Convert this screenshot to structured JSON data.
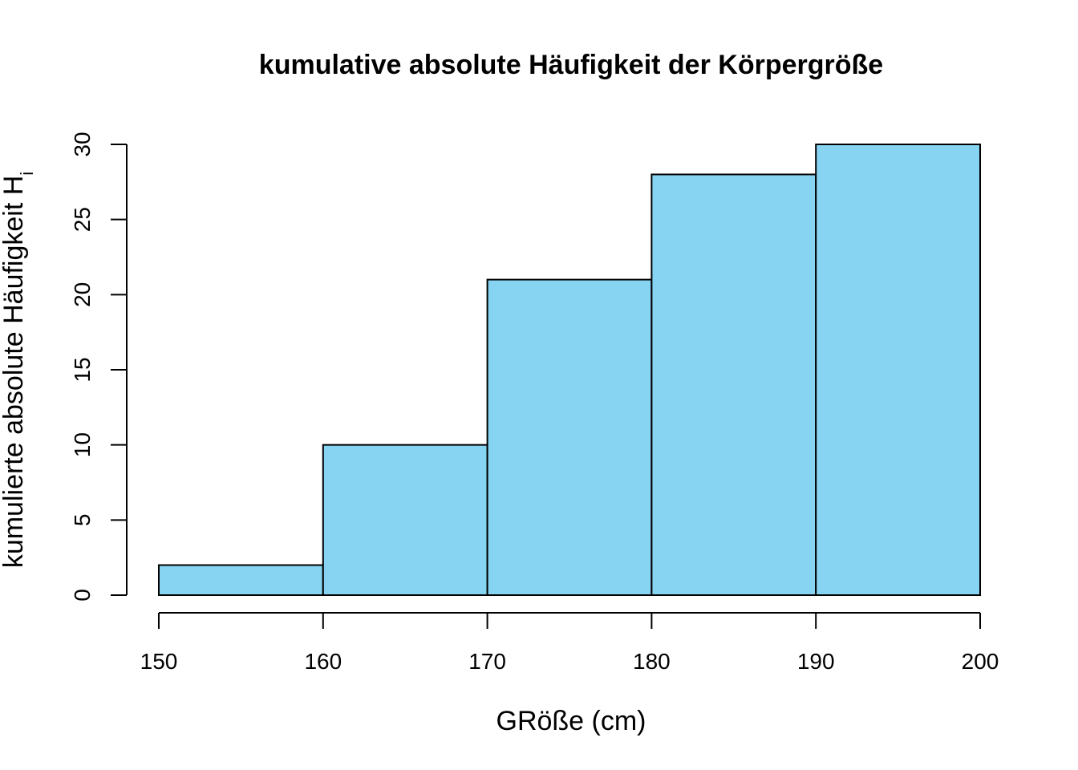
{
  "chart_data": {
    "type": "bar",
    "title": "kumulative absolute Häufigkeit der Körpergröße",
    "xlabel": "GRöße (cm)",
    "ylabel": "kumulierte absolute Häufigkeit H",
    "ylabel_subscript": "i",
    "bin_edges": [
      150,
      160,
      170,
      180,
      190,
      200
    ],
    "values": [
      2,
      10,
      21,
      28,
      30
    ],
    "xlim": [
      150,
      200
    ],
    "ylim": [
      0,
      30
    ],
    "x_ticks": [
      150,
      160,
      170,
      180,
      190,
      200
    ],
    "y_ticks": [
      0,
      5,
      10,
      15,
      20,
      25,
      30
    ],
    "bar_color": "#87d3f2",
    "border_color": "#000000",
    "grid": false,
    "legend": "none"
  }
}
